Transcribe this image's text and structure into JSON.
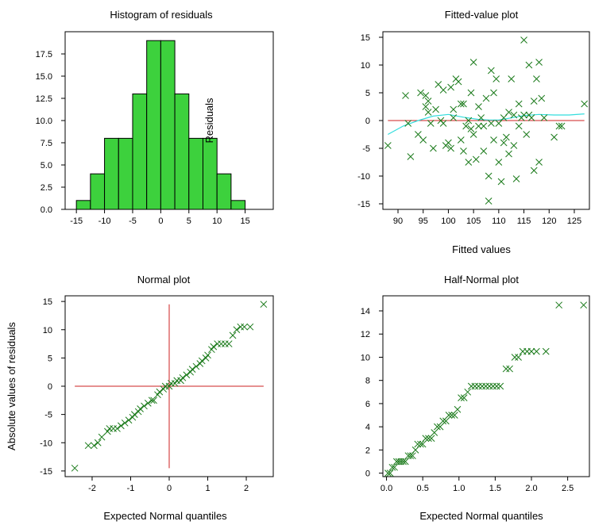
{
  "chart_data": [
    {
      "id": "histogram",
      "type": "bar",
      "title": "Histogram of residuals",
      "xlabel": "",
      "ylabel": "",
      "overlay_label": "Residuals",
      "bar_color": "#3dd13d",
      "bins": [
        {
          "from": -15,
          "to": -12.5,
          "count": 1
        },
        {
          "from": -12.5,
          "to": -10,
          "count": 4
        },
        {
          "from": -10,
          "to": -7.5,
          "count": 8
        },
        {
          "from": -7.5,
          "to": -5,
          "count": 8
        },
        {
          "from": -5,
          "to": -2.5,
          "count": 13
        },
        {
          "from": -2.5,
          "to": 0,
          "count": 19
        },
        {
          "from": 0,
          "to": 2.5,
          "count": 19
        },
        {
          "from": 2.5,
          "to": 5,
          "count": 13
        },
        {
          "from": 5,
          "to": 7.5,
          "count": 8
        },
        {
          "from": 7.5,
          "to": 10,
          "count": 8
        },
        {
          "from": 10,
          "to": 12.5,
          "count": 4
        },
        {
          "from": 12.5,
          "to": 15,
          "count": 1
        }
      ],
      "xlim": [
        -17,
        20
      ],
      "ylim": [
        0,
        20
      ],
      "xticks": [
        "-15",
        "-10",
        "-5",
        "0",
        "5",
        "10",
        "15"
      ],
      "xtick_values": [
        -15,
        -10,
        -5,
        0,
        5,
        10,
        15
      ],
      "yticks": [
        "0.0",
        "2.5",
        "5.0",
        "7.5",
        "10.0",
        "12.5",
        "15.0",
        "17.5"
      ],
      "ytick_values": [
        0,
        2.5,
        5,
        7.5,
        10,
        12.5,
        15,
        17.5
      ]
    },
    {
      "id": "fitted",
      "type": "scatter",
      "title": "Fitted-value plot",
      "xlabel": "Fitted values",
      "ylabel": "",
      "marker_color": "#1a7a1a",
      "zero_line_color": "#cc2222",
      "smooth_color": "#33dddd",
      "xlim": [
        87,
        128
      ],
      "ylim": [
        -16,
        16
      ],
      "xticks": [
        "90",
        "95",
        "100",
        "105",
        "110",
        "115",
        "120",
        "125"
      ],
      "xtick_values": [
        90,
        95,
        100,
        105,
        110,
        115,
        120,
        125
      ],
      "yticks": [
        "-15",
        "-10",
        "-5",
        "0",
        "5",
        "10",
        "15"
      ],
      "ytick_values": [
        -15,
        -10,
        -5,
        0,
        5,
        10,
        15
      ],
      "points": [
        [
          88,
          -4.5
        ],
        [
          91.5,
          4.5
        ],
        [
          92,
          -0.5
        ],
        [
          92.5,
          -6.5
        ],
        [
          94,
          -2.5
        ],
        [
          94.5,
          5
        ],
        [
          95,
          -3.5
        ],
        [
          95.5,
          4.5
        ],
        [
          95.5,
          2.5
        ],
        [
          96,
          3.5
        ],
        [
          96,
          1.5
        ],
        [
          96.5,
          -0.5
        ],
        [
          97,
          -5
        ],
        [
          97.5,
          2
        ],
        [
          98,
          6.5
        ],
        [
          98.5,
          0
        ],
        [
          99,
          5.5
        ],
        [
          99,
          -0.5
        ],
        [
          99.5,
          -4.5
        ],
        [
          100,
          -4
        ],
        [
          100.5,
          6
        ],
        [
          100.5,
          -5
        ],
        [
          101,
          0.5
        ],
        [
          101,
          2
        ],
        [
          101.5,
          7.5
        ],
        [
          102,
          7
        ],
        [
          102.5,
          -3.5
        ],
        [
          102.5,
          3
        ],
        [
          103,
          -5.5
        ],
        [
          103,
          3
        ],
        [
          103.5,
          -1
        ],
        [
          104,
          -7.5
        ],
        [
          104,
          0
        ],
        [
          104.5,
          -1.5
        ],
        [
          104.5,
          5
        ],
        [
          105,
          10.5
        ],
        [
          105,
          -2.5
        ],
        [
          105.5,
          -7
        ],
        [
          106,
          2.5
        ],
        [
          106,
          -1
        ],
        [
          106.5,
          0.5
        ],
        [
          107,
          -5.5
        ],
        [
          107,
          -1
        ],
        [
          107.5,
          4
        ],
        [
          108,
          -10
        ],
        [
          108,
          -14.5
        ],
        [
          108.5,
          9
        ],
        [
          108.5,
          -0.5
        ],
        [
          109,
          -3.5
        ],
        [
          109,
          5
        ],
        [
          109.5,
          7.5
        ],
        [
          110,
          -7.5
        ],
        [
          110,
          -0.5
        ],
        [
          110.5,
          -11
        ],
        [
          111,
          -4
        ],
        [
          111,
          0.5
        ],
        [
          111.5,
          -3
        ],
        [
          112,
          1.5
        ],
        [
          112,
          -6
        ],
        [
          112.5,
          7.5
        ],
        [
          113,
          -4.5
        ],
        [
          113,
          1
        ],
        [
          113.5,
          -10.5
        ],
        [
          114,
          3
        ],
        [
          114,
          -1
        ],
        [
          114.5,
          0.5
        ],
        [
          115,
          1
        ],
        [
          115,
          14.5
        ],
        [
          115.5,
          -2.5
        ],
        [
          116,
          10
        ],
        [
          116,
          1
        ],
        [
          116.5,
          0.5
        ],
        [
          117,
          -9
        ],
        [
          117,
          3.5
        ],
        [
          117.5,
          7.5
        ],
        [
          118,
          -7.5
        ],
        [
          118,
          10.5
        ],
        [
          118.5,
          4
        ],
        [
          119,
          0.5
        ],
        [
          121,
          -3
        ],
        [
          122,
          -1
        ],
        [
          122.5,
          -1
        ],
        [
          127,
          3
        ]
      ],
      "smooth": [
        [
          88,
          -2.5
        ],
        [
          91,
          -1
        ],
        [
          94,
          0
        ],
        [
          97,
          0.8
        ],
        [
          100,
          1.1
        ],
        [
          103,
          0.6
        ],
        [
          106,
          0.2
        ],
        [
          108,
          0.1
        ],
        [
          110,
          0.1
        ],
        [
          112,
          0.4
        ],
        [
          115,
          0.9
        ],
        [
          118,
          1.1
        ],
        [
          121,
          1.0
        ],
        [
          124,
          1.0
        ],
        [
          127,
          1.2
        ]
      ]
    },
    {
      "id": "normal",
      "type": "scatter",
      "title": "Normal plot",
      "xlabel": "Expected Normal quantiles",
      "ylabel": "Absolute values of residuals",
      "marker_color": "#1a7a1a",
      "crosshair_color": "#cc2222",
      "xlim": [
        -2.7,
        2.7
      ],
      "ylim": [
        -16,
        16
      ],
      "xticks": [
        "-2",
        "-1",
        "0",
        "1",
        "2"
      ],
      "xtick_values": [
        -2,
        -1,
        0,
        1,
        2
      ],
      "yticks": [
        "-15",
        "-10",
        "-5",
        "0",
        "5",
        "10",
        "15"
      ],
      "ytick_values": [
        -15,
        -10,
        -5,
        0,
        5,
        10,
        15
      ],
      "points": [
        [
          -2.45,
          -14.5
        ],
        [
          -2.1,
          -10.5
        ],
        [
          -1.95,
          -10.5
        ],
        [
          -1.85,
          -10
        ],
        [
          -1.75,
          -9
        ],
        [
          -1.6,
          -8
        ],
        [
          -1.55,
          -7.5
        ],
        [
          -1.45,
          -7.5
        ],
        [
          -1.35,
          -7.5
        ],
        [
          -1.25,
          -7
        ],
        [
          -1.15,
          -6.5
        ],
        [
          -1.05,
          -6
        ],
        [
          -0.95,
          -5.5
        ],
        [
          -0.9,
          -5
        ],
        [
          -0.8,
          -4.5
        ],
        [
          -0.75,
          -4
        ],
        [
          -0.65,
          -3.5
        ],
        [
          -0.55,
          -3
        ],
        [
          -0.45,
          -2.5
        ],
        [
          -0.4,
          -2.5
        ],
        [
          -0.3,
          -1.5
        ],
        [
          -0.25,
          -1
        ],
        [
          -0.15,
          -0.5
        ],
        [
          -0.1,
          0
        ],
        [
          0,
          0
        ],
        [
          0.05,
          0.5
        ],
        [
          0.15,
          0.5
        ],
        [
          0.2,
          1
        ],
        [
          0.3,
          1
        ],
        [
          0.35,
          1.5
        ],
        [
          0.45,
          2
        ],
        [
          0.55,
          2.5
        ],
        [
          0.6,
          3
        ],
        [
          0.7,
          3.5
        ],
        [
          0.8,
          4
        ],
        [
          0.85,
          4.5
        ],
        [
          0.95,
          5
        ],
        [
          1.0,
          5.5
        ],
        [
          1.1,
          6.5
        ],
        [
          1.15,
          7
        ],
        [
          1.25,
          7.5
        ],
        [
          1.35,
          7.5
        ],
        [
          1.45,
          7.5
        ],
        [
          1.55,
          7.5
        ],
        [
          1.65,
          9
        ],
        [
          1.75,
          10
        ],
        [
          1.85,
          10.5
        ],
        [
          1.95,
          10.5
        ],
        [
          2.1,
          10.5
        ],
        [
          2.45,
          14.5
        ]
      ]
    },
    {
      "id": "halfnormal",
      "type": "scatter",
      "title": "Half-Normal plot",
      "xlabel": "Expected Normal quantiles",
      "ylabel": "",
      "marker_color": "#1a7a1a",
      "xlim": [
        -0.05,
        2.8
      ],
      "ylim": [
        -0.3,
        15.3
      ],
      "xticks": [
        "0.0",
        "0.5",
        "1.0",
        "1.5",
        "2.0",
        "2.5"
      ],
      "xtick_values": [
        0,
        0.5,
        1,
        1.5,
        2,
        2.5
      ],
      "yticks": [
        "0",
        "2",
        "4",
        "6",
        "8",
        "10",
        "12",
        "14"
      ],
      "ytick_values": [
        0,
        2,
        4,
        6,
        8,
        10,
        12,
        14
      ],
      "points": [
        [
          0.02,
          0
        ],
        [
          0.05,
          0
        ],
        [
          0.08,
          0.5
        ],
        [
          0.11,
          0.5
        ],
        [
          0.14,
          1
        ],
        [
          0.17,
          1
        ],
        [
          0.2,
          1
        ],
        [
          0.23,
          1
        ],
        [
          0.26,
          1
        ],
        [
          0.3,
          1.5
        ],
        [
          0.33,
          1.5
        ],
        [
          0.36,
          1.5
        ],
        [
          0.4,
          2
        ],
        [
          0.43,
          2.5
        ],
        [
          0.47,
          2.5
        ],
        [
          0.5,
          2.5
        ],
        [
          0.54,
          3
        ],
        [
          0.58,
          3
        ],
        [
          0.62,
          3
        ],
        [
          0.66,
          3.5
        ],
        [
          0.7,
          4
        ],
        [
          0.74,
          4
        ],
        [
          0.78,
          4.5
        ],
        [
          0.82,
          4.5
        ],
        [
          0.86,
          5
        ],
        [
          0.9,
          5
        ],
        [
          0.94,
          5
        ],
        [
          0.98,
          5.5
        ],
        [
          1.03,
          6.5
        ],
        [
          1.07,
          6.5
        ],
        [
          1.12,
          7
        ],
        [
          1.17,
          7.5
        ],
        [
          1.22,
          7.5
        ],
        [
          1.27,
          7.5
        ],
        [
          1.32,
          7.5
        ],
        [
          1.37,
          7.5
        ],
        [
          1.42,
          7.5
        ],
        [
          1.47,
          7.5
        ],
        [
          1.52,
          7.5
        ],
        [
          1.57,
          7.5
        ],
        [
          1.65,
          9
        ],
        [
          1.7,
          9
        ],
        [
          1.77,
          10
        ],
        [
          1.82,
          10
        ],
        [
          1.88,
          10.5
        ],
        [
          1.94,
          10.5
        ],
        [
          2.0,
          10.5
        ],
        [
          2.07,
          10.5
        ],
        [
          2.2,
          10.5
        ],
        [
          2.38,
          14.5
        ],
        [
          2.72,
          14.5
        ]
      ]
    }
  ]
}
